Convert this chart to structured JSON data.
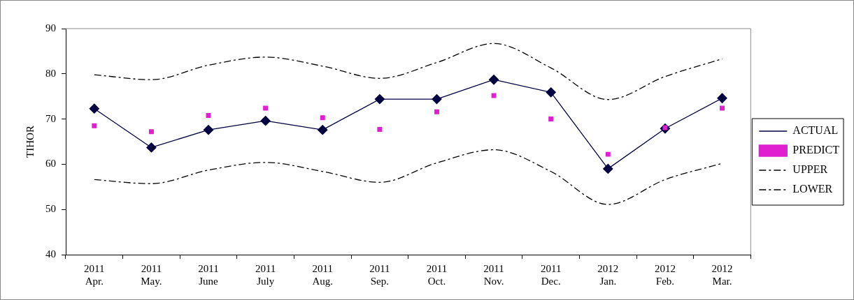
{
  "chart_data": {
    "type": "line",
    "ylabel": "TIHOR",
    "categories": [
      "2011\nApr.",
      "2011\nMay.",
      "2011\nJune",
      "2011\nJuly",
      "2011\nAug.",
      "2011\nSep.",
      "2011\nOct.",
      "2011\nNov.",
      "2011\nDec.",
      "2012\nJan.",
      "2012\nFeb.",
      "2012\nMar."
    ],
    "series": [
      {
        "name": "ACTUAL",
        "color": "#000040",
        "marker": "diamond",
        "line_style": "solid",
        "values": [
          72.3,
          63.7,
          67.6,
          69.6,
          67.6,
          74.4,
          74.4,
          78.7,
          75.9,
          59.0,
          67.9,
          74.6
        ]
      },
      {
        "name": "PREDICT",
        "type": "scatter",
        "color": "#e020d0",
        "marker": "square",
        "values": [
          68.5,
          67.2,
          70.8,
          72.4,
          70.3,
          67.7,
          71.6,
          75.2,
          70.0,
          62.2,
          68.1,
          72.4
        ]
      },
      {
        "name": "UPPER",
        "color": "#000000",
        "marker": "none",
        "line_style": "dashed",
        "values": [
          79.8,
          78.7,
          81.9,
          83.7,
          81.7,
          79.0,
          82.5,
          86.7,
          81.3,
          74.3,
          79.4,
          83.3
        ]
      },
      {
        "name": "LOWER",
        "color": "#000000",
        "marker": "none",
        "line_style": "dashed",
        "values": [
          56.6,
          55.7,
          58.7,
          60.4,
          58.4,
          56.0,
          60.3,
          63.2,
          58.4,
          51.1,
          56.6,
          60.2
        ]
      }
    ],
    "ylim": [
      40,
      90
    ],
    "yticks": [
      40,
      50,
      60,
      70,
      80,
      90
    ],
    "grid": false,
    "legend": "right"
  }
}
